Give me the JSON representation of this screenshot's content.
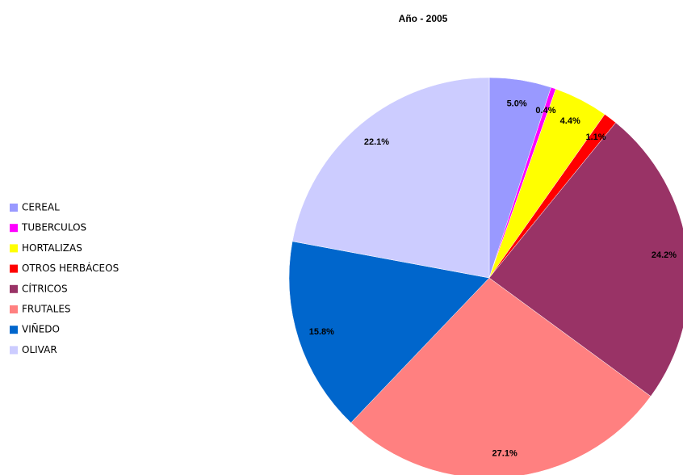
{
  "chart_data": {
    "type": "pie",
    "title": "Año - 2005",
    "categories": [
      "CEREAL",
      "TUBERCULOS",
      "HORTALIZAS",
      "OTROS HERBÁCEOS",
      "CÍTRICOS",
      "FRUTALES",
      "VIÑEDO",
      "OLIVAR"
    ],
    "values": [
      5.0,
      0.4,
      4.4,
      1.1,
      24.2,
      27.1,
      15.8,
      22.1
    ],
    "value_labels": [
      "5.0%",
      "0.4%",
      "4.4%",
      "1.1%",
      "24.2%",
      "27.1%",
      "15.8%",
      "22.1%"
    ],
    "colors": [
      "#9999ff",
      "#ff00ff",
      "#ffff00",
      "#ff0000",
      "#993366",
      "#ff8080",
      "#0066cc",
      "#ccccff"
    ],
    "legend": "left"
  }
}
